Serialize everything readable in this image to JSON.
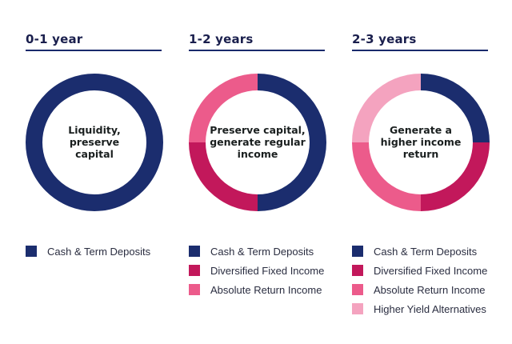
{
  "colors": {
    "cash": "#1b2d6e",
    "fixed": "#c2185b",
    "absolute": "#ec5b8b",
    "higher": "#f4a3bf",
    "title": "#1a1f4d"
  },
  "chart_data": [
    {
      "type": "donut",
      "title": "0-1 year",
      "center_label": [
        "Liquidity,",
        "preserve",
        "capital"
      ],
      "series": [
        {
          "name": "Cash & Term Deposits",
          "value": 100,
          "color": "#1b2d6e"
        }
      ]
    },
    {
      "type": "donut",
      "title": "1-2 years",
      "center_label": [
        "Preserve capital,",
        "generate regular",
        "income"
      ],
      "series": [
        {
          "name": "Cash & Term Deposits",
          "value": 50,
          "color": "#1b2d6e"
        },
        {
          "name": "Diversified Fixed Income",
          "value": 25,
          "color": "#c2185b"
        },
        {
          "name": "Absolute Return Income",
          "value": 25,
          "color": "#ec5b8b"
        }
      ]
    },
    {
      "type": "donut",
      "title": "2-3 years",
      "center_label": [
        "Generate a",
        "higher income",
        "return"
      ],
      "series": [
        {
          "name": "Cash & Term Deposits",
          "value": 25,
          "color": "#1b2d6e"
        },
        {
          "name": "Diversified Fixed Income",
          "value": 25,
          "color": "#c2185b"
        },
        {
          "name": "Absolute Return Income",
          "value": 25,
          "color": "#ec5b8b"
        },
        {
          "name": "Higher Yield Alternatives",
          "value": 25,
          "color": "#f4a3bf"
        }
      ]
    }
  ]
}
